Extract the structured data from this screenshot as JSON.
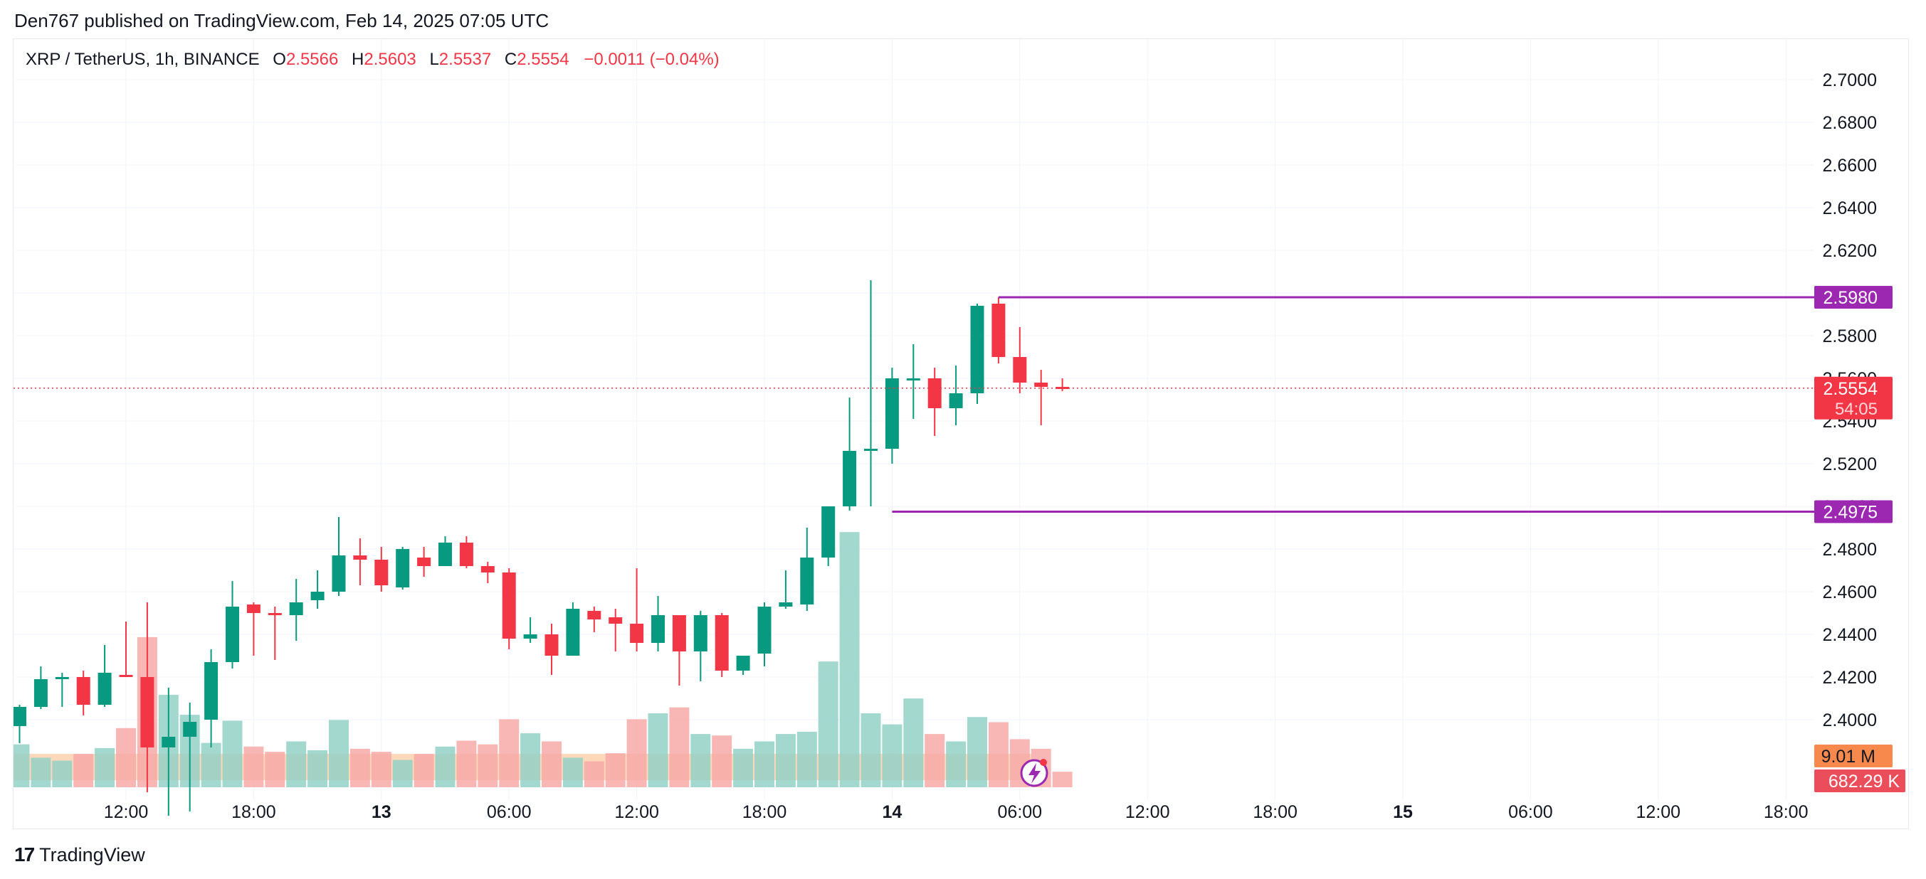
{
  "header": {
    "published_line": "Den767 published on TradingView.com, Feb 14, 2025 07:05 UTC"
  },
  "legend": {
    "symbol": "XRP / TetherUS, 1h, BINANCE",
    "open_label": "O",
    "open": "2.5566",
    "high_label": "H",
    "high": "2.5603",
    "low_label": "L",
    "low": "2.5537",
    "close_label": "C",
    "close": "2.5554",
    "change": "−0.0011 (−0.04%)"
  },
  "footer": {
    "brand": "TradingView"
  },
  "colors": {
    "up": "#089981",
    "down": "#f23645",
    "volume_up": "#93d1c7",
    "volume_down": "#f7a9a7",
    "level_line": "#9c27b0",
    "grid": "#f0f3fa",
    "axis_text": "#131722",
    "volume_avg": "#fccba4",
    "volume_avg_badge": "#f7894c"
  },
  "icons": {
    "corner_badge": "lightning-circle-icon",
    "brand_logo": "tradingview-logo-icon"
  },
  "chart_data": {
    "type": "candlestick",
    "timeframe": "1h",
    "price_axis": {
      "ticks": [
        "2.7000",
        "2.6800",
        "2.6600",
        "2.6400",
        "2.6200",
        "2.6000",
        "2.5800",
        "2.5600",
        "2.5400",
        "2.5200",
        "2.5000",
        "2.4800",
        "2.4600",
        "2.4400",
        "2.4200",
        "2.4000"
      ],
      "range": [
        2.38,
        2.71
      ]
    },
    "time_axis": {
      "ticks": [
        {
          "label": "12:00",
          "hour": 12,
          "bold": false
        },
        {
          "label": "18:00",
          "hour": 18,
          "bold": false
        },
        {
          "label": "13",
          "hour": 24,
          "bold": true
        },
        {
          "label": "06:00",
          "hour": 30,
          "bold": false
        },
        {
          "label": "12:00",
          "hour": 36,
          "bold": false
        },
        {
          "label": "18:00",
          "hour": 42,
          "bold": false
        },
        {
          "label": "14",
          "hour": 48,
          "bold": true
        },
        {
          "label": "06:00",
          "hour": 54,
          "bold": false
        },
        {
          "label": "12:00",
          "hour": 60,
          "bold": false
        },
        {
          "label": "18:00",
          "hour": 66,
          "bold": false
        },
        {
          "label": "15",
          "hour": 72,
          "bold": true
        },
        {
          "label": "06:00",
          "hour": 78,
          "bold": false
        },
        {
          "label": "12:00",
          "hour": 84,
          "bold": false
        },
        {
          "label": "18:00",
          "hour": 90,
          "bold": false
        }
      ],
      "first_candle_hour": 7
    },
    "candles": [
      {
        "o": 2.397,
        "h": 2.407,
        "l": 2.389,
        "c": 2.406,
        "v": 0.58
      },
      {
        "o": 2.406,
        "h": 2.425,
        "l": 2.405,
        "c": 2.419,
        "v": 0.4
      },
      {
        "o": 2.419,
        "h": 2.422,
        "l": 2.406,
        "c": 2.42,
        "v": 0.36
      },
      {
        "o": 2.42,
        "h": 2.423,
        "l": 2.402,
        "c": 2.407,
        "v": 0.45
      },
      {
        "o": 2.407,
        "h": 2.435,
        "l": 2.406,
        "c": 2.422,
        "v": 0.53
      },
      {
        "o": 2.421,
        "h": 2.446,
        "l": 2.42,
        "c": 2.42,
        "v": 0.8
      },
      {
        "o": 2.42,
        "h": 2.455,
        "l": 2.366,
        "c": 2.387,
        "v": 2.03
      },
      {
        "o": 2.387,
        "h": 2.415,
        "l": 2.355,
        "c": 2.392,
        "v": 1.25
      },
      {
        "o": 2.392,
        "h": 2.408,
        "l": 2.357,
        "c": 2.399,
        "v": 0.98
      },
      {
        "o": 2.4,
        "h": 2.433,
        "l": 2.387,
        "c": 2.427,
        "v": 0.6
      },
      {
        "o": 2.427,
        "h": 2.465,
        "l": 2.424,
        "c": 2.453,
        "v": 0.9
      },
      {
        "o": 2.454,
        "h": 2.455,
        "l": 2.43,
        "c": 2.45,
        "v": 0.55
      },
      {
        "o": 2.45,
        "h": 2.453,
        "l": 2.428,
        "c": 2.449,
        "v": 0.48
      },
      {
        "o": 2.449,
        "h": 2.466,
        "l": 2.437,
        "c": 2.455,
        "v": 0.62
      },
      {
        "o": 2.456,
        "h": 2.47,
        "l": 2.452,
        "c": 2.46,
        "v": 0.5
      },
      {
        "o": 2.46,
        "h": 2.495,
        "l": 2.458,
        "c": 2.477,
        "v": 0.91
      },
      {
        "o": 2.477,
        "h": 2.485,
        "l": 2.463,
        "c": 2.475,
        "v": 0.52
      },
      {
        "o": 2.475,
        "h": 2.481,
        "l": 2.46,
        "c": 2.463,
        "v": 0.48
      },
      {
        "o": 2.462,
        "h": 2.481,
        "l": 2.461,
        "c": 2.48,
        "v": 0.37
      },
      {
        "o": 2.476,
        "h": 2.481,
        "l": 2.467,
        "c": 2.472,
        "v": 0.45
      },
      {
        "o": 2.472,
        "h": 2.486,
        "l": 2.472,
        "c": 2.483,
        "v": 0.55
      },
      {
        "o": 2.483,
        "h": 2.486,
        "l": 2.471,
        "c": 2.472,
        "v": 0.63
      },
      {
        "o": 2.472,
        "h": 2.474,
        "l": 2.464,
        "c": 2.469,
        "v": 0.58
      },
      {
        "o": 2.469,
        "h": 2.471,
        "l": 2.433,
        "c": 2.438,
        "v": 0.92
      },
      {
        "o": 2.438,
        "h": 2.448,
        "l": 2.436,
        "c": 2.44,
        "v": 0.73
      },
      {
        "o": 2.44,
        "h": 2.445,
        "l": 2.421,
        "c": 2.43,
        "v": 0.62
      },
      {
        "o": 2.43,
        "h": 2.455,
        "l": 2.43,
        "c": 2.452,
        "v": 0.4
      },
      {
        "o": 2.451,
        "h": 2.453,
        "l": 2.441,
        "c": 2.447,
        "v": 0.35
      },
      {
        "o": 2.448,
        "h": 2.452,
        "l": 2.432,
        "c": 2.445,
        "v": 0.46
      },
      {
        "o": 2.445,
        "h": 2.471,
        "l": 2.432,
        "c": 2.436,
        "v": 0.92
      },
      {
        "o": 2.436,
        "h": 2.458,
        "l": 2.432,
        "c": 2.449,
        "v": 1.0
      },
      {
        "o": 2.449,
        "h": 2.449,
        "l": 2.416,
        "c": 2.432,
        "v": 1.08
      },
      {
        "o": 2.432,
        "h": 2.451,
        "l": 2.418,
        "c": 2.449,
        "v": 0.72
      },
      {
        "o": 2.449,
        "h": 2.45,
        "l": 2.42,
        "c": 2.423,
        "v": 0.7
      },
      {
        "o": 2.423,
        "h": 2.43,
        "l": 2.421,
        "c": 2.43,
        "v": 0.52
      },
      {
        "o": 2.431,
        "h": 2.455,
        "l": 2.425,
        "c": 2.453,
        "v": 0.62
      },
      {
        "o": 2.453,
        "h": 2.47,
        "l": 2.452,
        "c": 2.455,
        "v": 0.72
      },
      {
        "o": 2.454,
        "h": 2.49,
        "l": 2.451,
        "c": 2.476,
        "v": 0.75
      },
      {
        "o": 2.476,
        "h": 2.5,
        "l": 2.472,
        "c": 2.5,
        "v": 1.7
      },
      {
        "o": 2.5,
        "h": 2.551,
        "l": 2.498,
        "c": 2.526,
        "v": 3.45
      },
      {
        "o": 2.526,
        "h": 2.606,
        "l": 2.5,
        "c": 2.527,
        "v": 1.0
      },
      {
        "o": 2.527,
        "h": 2.565,
        "l": 2.52,
        "c": 2.56,
        "v": 0.85
      },
      {
        "o": 2.56,
        "h": 2.576,
        "l": 2.541,
        "c": 2.56,
        "v": 1.2
      },
      {
        "o": 2.56,
        "h": 2.565,
        "l": 2.533,
        "c": 2.546,
        "v": 0.72
      },
      {
        "o": 2.546,
        "h": 2.566,
        "l": 2.538,
        "c": 2.553,
        "v": 0.62
      },
      {
        "o": 2.553,
        "h": 2.595,
        "l": 2.548,
        "c": 2.594,
        "v": 0.95
      },
      {
        "o": 2.595,
        "h": 2.598,
        "l": 2.567,
        "c": 2.57,
        "v": 0.88
      },
      {
        "o": 2.57,
        "h": 2.584,
        "l": 2.553,
        "c": 2.558,
        "v": 0.65
      },
      {
        "o": 2.558,
        "h": 2.564,
        "l": 2.538,
        "c": 2.556,
        "v": 0.52
      },
      {
        "o": 2.556,
        "h": 2.56,
        "l": 2.554,
        "c": 2.555,
        "v": 0.21
      }
    ],
    "volume_average_level": 0.82,
    "levels": [
      {
        "price": 2.598,
        "label": "2.5980",
        "from_candle": 46
      },
      {
        "price": 2.4975,
        "label": "2.4975",
        "from_candle": 41
      }
    ],
    "current_price": {
      "value": 2.5554,
      "label": "2.5554",
      "countdown": "54:05"
    },
    "volume_badges": {
      "average": "9.01 M",
      "current": "682.29 K"
    }
  }
}
